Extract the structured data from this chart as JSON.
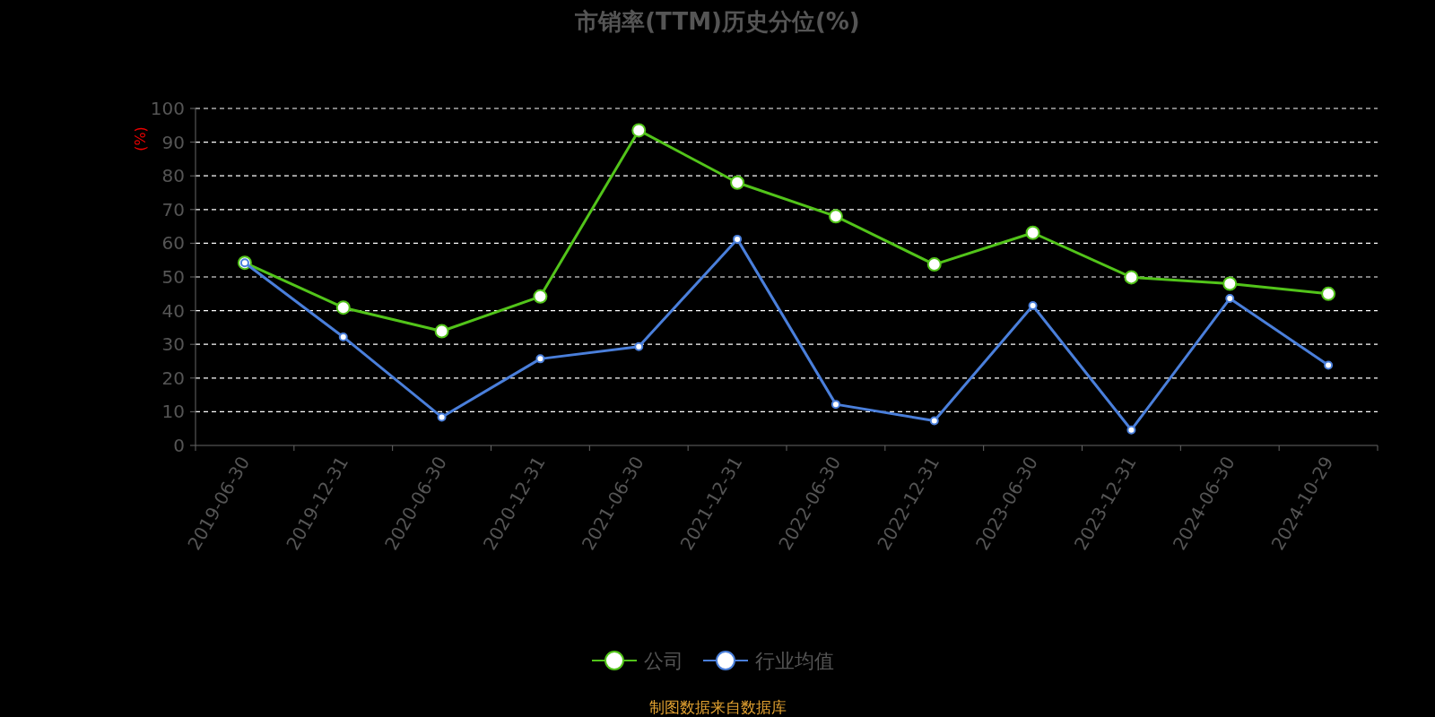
{
  "chart_data": {
    "type": "line",
    "title": "市销率(TTM)历史分位(%)",
    "ylabel": "(%)",
    "categories": [
      "2019-06-30",
      "2019-12-31",
      "2020-06-30",
      "2020-12-31",
      "2021-06-30",
      "2021-12-31",
      "2022-06-30",
      "2022-12-31",
      "2023-06-30",
      "2023-12-31",
      "2024-06-30",
      "2024-10-29"
    ],
    "series": [
      {
        "name": "公司",
        "color": "#52c41a",
        "values": [
          54.2,
          40.9,
          33.9,
          44.2,
          93.5,
          78,
          68,
          53.7,
          63.1,
          49.9,
          48,
          45
        ]
      },
      {
        "name": "行业均值",
        "color": "#4a7fdb",
        "values": [
          54.2,
          32.2,
          8.4,
          25.7,
          29.3,
          61.2,
          12.2,
          7.3,
          41.5,
          4.6,
          43.6,
          23.8
        ]
      }
    ],
    "ylim": [
      0,
      100
    ],
    "yticks": [
      0,
      10,
      20,
      30,
      40,
      50,
      60,
      70,
      80,
      90,
      100
    ],
    "grid": "y",
    "legend": "bottom",
    "marker": "circle",
    "line_style": "solid",
    "annotations": [
      "制图数据来自数据库"
    ]
  }
}
